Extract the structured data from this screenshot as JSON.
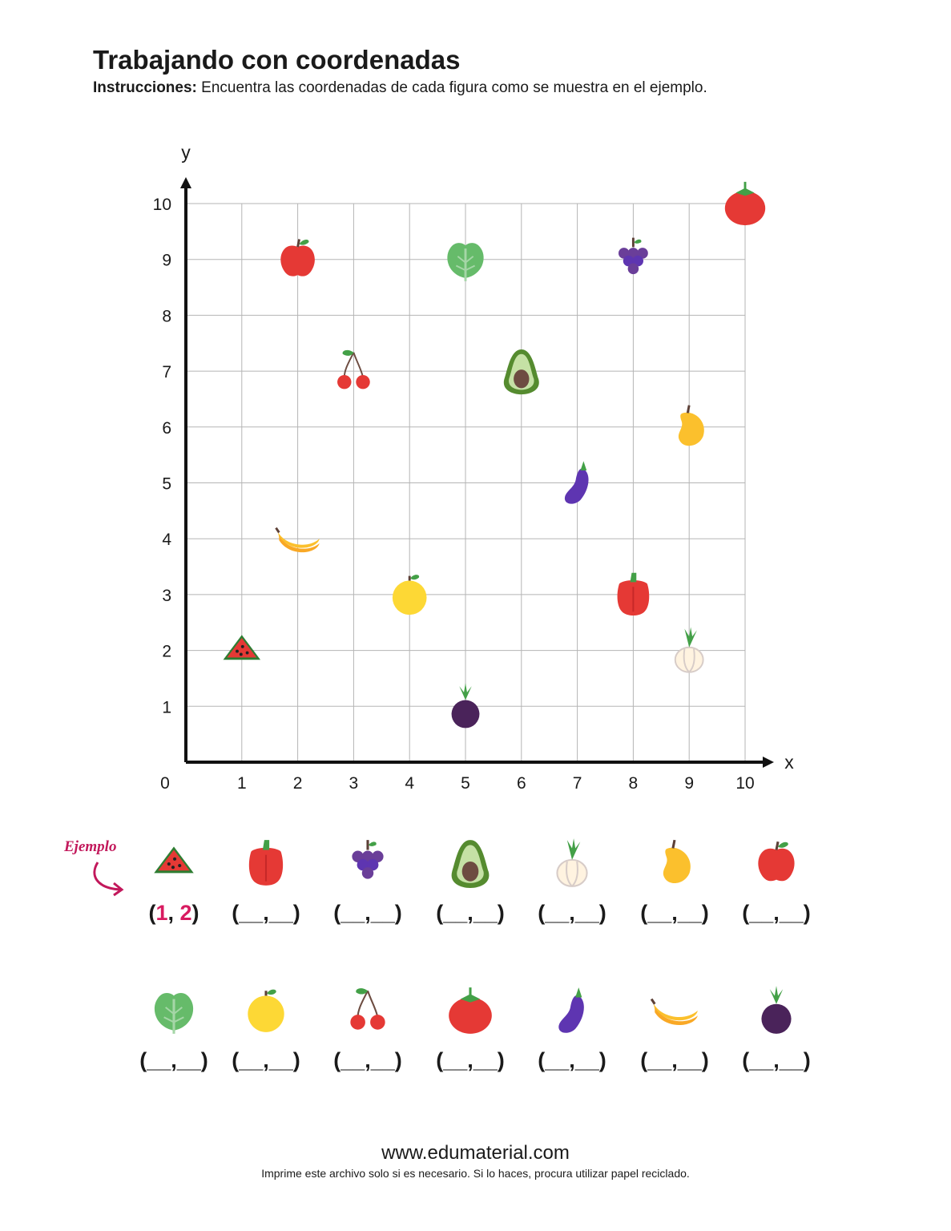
{
  "header": {
    "title": "Trabajando con coordenadas",
    "instructions_label": "Instrucciones:",
    "instructions_text": " Encuentra las coordenadas de cada figura como se muestra en el ejemplo."
  },
  "chart_data": {
    "type": "scatter",
    "xlabel": "x",
    "ylabel": "y",
    "origin_label": "0",
    "xlim": [
      0,
      10
    ],
    "ylim": [
      0,
      10
    ],
    "x_ticks": [
      "1",
      "2",
      "3",
      "4",
      "5",
      "6",
      "7",
      "8",
      "9",
      "10"
    ],
    "y_ticks": [
      "1",
      "2",
      "3",
      "4",
      "5",
      "6",
      "7",
      "8",
      "9",
      "10"
    ],
    "grid": true,
    "points": [
      {
        "icon": "watermelon-icon",
        "x": 1,
        "y": 2
      },
      {
        "icon": "apple-icon",
        "x": 2,
        "y": 9
      },
      {
        "icon": "banana-icon",
        "x": 2,
        "y": 4
      },
      {
        "icon": "cherry-icon",
        "x": 3,
        "y": 7
      },
      {
        "icon": "orange-icon",
        "x": 4,
        "y": 3
      },
      {
        "icon": "lettuce-icon",
        "x": 5,
        "y": 9
      },
      {
        "icon": "plum-icon",
        "x": 5,
        "y": 1
      },
      {
        "icon": "avocado-icon",
        "x": 6,
        "y": 7
      },
      {
        "icon": "eggplant-icon",
        "x": 7,
        "y": 5
      },
      {
        "icon": "grapes-icon",
        "x": 8,
        "y": 9
      },
      {
        "icon": "pepper-icon",
        "x": 8,
        "y": 3
      },
      {
        "icon": "mango-icon",
        "x": 9,
        "y": 6
      },
      {
        "icon": "onion-icon",
        "x": 9,
        "y": 2
      },
      {
        "icon": "tomato-icon",
        "x": 10,
        "y": 10
      }
    ]
  },
  "exercise": {
    "example_label": "Ejemplo",
    "example_answer": {
      "open": "(",
      "x": "1",
      "sep": ", ",
      "y": "2",
      "close": ")"
    },
    "blank": "(__,__)",
    "row1_icons": [
      "watermelon-icon",
      "pepper-icon",
      "grapes-icon",
      "avocado-icon",
      "onion-icon",
      "mango-icon",
      "apple-icon"
    ],
    "row2_icons": [
      "lettuce-icon",
      "orange-icon",
      "cherry-icon",
      "tomato-icon",
      "eggplant-icon",
      "banana-icon",
      "plum-icon"
    ]
  },
  "colors": {
    "accent": "#d81b60",
    "grid": "#b5b5b5",
    "axis": "#111111"
  },
  "footer": {
    "url": "www.edumaterial.com",
    "note": "Imprime este archivo solo si es necesario. Si lo haces, procura utilizar papel reciclado."
  }
}
